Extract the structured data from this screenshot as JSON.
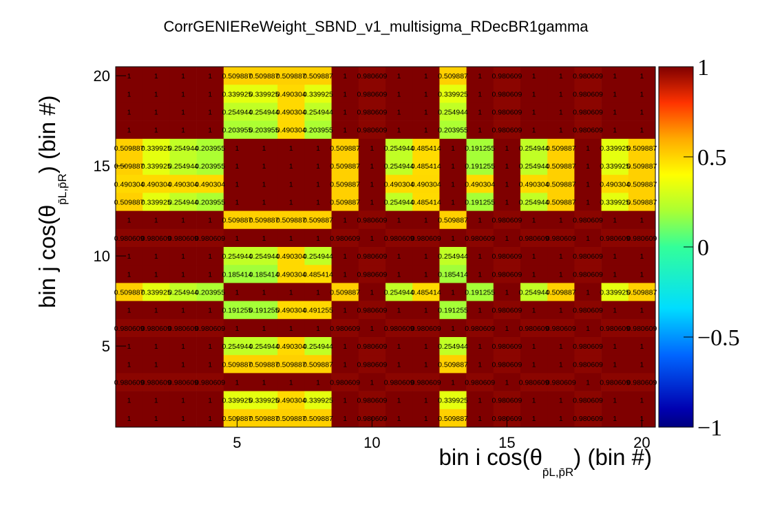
{
  "chart_data": {
    "type": "heatmap",
    "title": "CorrGENIEReWeight_SBND_v1_multisigma_RDecBR1gamma",
    "xlabel": "bin i cos(θ",
    "xlabel_sub": "p̄L,p̄R",
    "xlabel_tail": ") (bin #)",
    "ylabel": "bin j cos(θ",
    "ylabel_sub": "p̄L,p̄R",
    "ylabel_tail": ") (bin #)",
    "x_range": [
      0.5,
      20.5
    ],
    "y_range": [
      0.5,
      20.5
    ],
    "z_range": [
      -1,
      1
    ],
    "x_ticks": [
      5,
      10,
      15,
      20
    ],
    "y_ticks": [
      5,
      10,
      15,
      20
    ],
    "z_tick_labels": [
      "1",
      "0.5",
      "0",
      "−0.5",
      "−1"
    ],
    "z_tick_values": [
      1,
      0.5,
      0,
      -0.5,
      -1
    ],
    "rows": [
      [
        "1",
        "1",
        "1",
        "1",
        "0.509887",
        "0.509887",
        "0.509887",
        "0.509887",
        "1",
        "0.980609",
        "1",
        "1",
        "0.509887",
        "1",
        "0.980609",
        "1",
        "1",
        "0.980609",
        "1",
        "1"
      ],
      [
        "1",
        "1",
        "1",
        "1",
        "0.339925",
        "0.339925",
        "0.490304",
        "0.339925",
        "1",
        "0.980609",
        "1",
        "1",
        "0.339925",
        "1",
        "0.980609",
        "1",
        "1",
        "0.980609",
        "1",
        "1"
      ],
      [
        "1",
        "1",
        "1",
        "1",
        "0.254944",
        "0.254944",
        "0.490304",
        "0.254944",
        "1",
        "0.980609",
        "1",
        "1",
        "0.254944",
        "1",
        "0.980609",
        "1",
        "1",
        "0.980609",
        "1",
        "1"
      ],
      [
        "1",
        "1",
        "1",
        "1",
        "0.203955",
        "0.203955",
        "0.490304",
        "0.203955",
        "1",
        "0.980609",
        "1",
        "1",
        "0.203955",
        "1",
        "0.980609",
        "1",
        "1",
        "0.980609",
        "1",
        "1"
      ],
      [
        "0.509887",
        "0.339925",
        "0.254944",
        "0.203955",
        "1",
        "1",
        "1",
        "1",
        "0.509887",
        "1",
        "0.254944",
        "0.485414",
        "1",
        "0.191255",
        "1",
        "0.254944",
        "0.509887",
        "1",
        "0.339925",
        "0.509887"
      ],
      [
        "0.509887",
        "0.339925",
        "0.254944",
        "0.203955",
        "1",
        "1",
        "1",
        "1",
        "0.509887",
        "1",
        "0.254944",
        "0.485414",
        "1",
        "0.191255",
        "1",
        "0.254944",
        "0.509887",
        "1",
        "0.339925",
        "0.509887"
      ],
      [
        "0.490304",
        "0.490304",
        "0.490304",
        "0.490304",
        "1",
        "1",
        "1",
        "1",
        "0.509887",
        "1",
        "0.490304",
        "0.490304",
        "1",
        "0.490304",
        "1",
        "0.490304",
        "0.509887",
        "1",
        "0.490304",
        "0.509887"
      ],
      [
        "0.509887",
        "0.339925",
        "0.254944",
        "0.203955",
        "1",
        "1",
        "1",
        "1",
        "0.509887",
        "1",
        "0.254944",
        "0.485414",
        "1",
        "0.191255",
        "1",
        "0.254944",
        "0.509887",
        "1",
        "0.339925",
        "0.509887"
      ],
      [
        "1",
        "1",
        "1",
        "1",
        "0.509887",
        "0.509887",
        "0.509887",
        "0.509887",
        "1",
        "0.980609",
        "1",
        "1",
        "0.509887",
        "1",
        "0.980609",
        "1",
        "1",
        "0.980609",
        "1",
        "1"
      ],
      [
        "0.980609",
        "0.980609",
        "0.980609",
        "0.980609",
        "1",
        "1",
        "1",
        "1",
        "0.980609",
        "1",
        "0.980609",
        "0.980609",
        "1",
        "0.980609",
        "1",
        "0.980609",
        "0.980609",
        "1",
        "0.980609",
        "0.980609"
      ],
      [
        "1",
        "1",
        "1",
        "1",
        "0.254944",
        "0.254944",
        "0.490304",
        "0.254944",
        "1",
        "0.980609",
        "1",
        "1",
        "0.254944",
        "1",
        "0.980609",
        "1",
        "1",
        "0.980609",
        "1",
        "1"
      ],
      [
        "1",
        "1",
        "1",
        "1",
        "0.185414",
        "0.185414",
        "0.490304",
        "0.485414",
        "1",
        "0.980609",
        "1",
        "1",
        "0.185414",
        "1",
        "0.980609",
        "1",
        "1",
        "0.980609",
        "1",
        "1"
      ],
      [
        "0.509887",
        "0.339925",
        "0.254944",
        "0.203955",
        "1",
        "1",
        "1",
        "1",
        "0.509887",
        "1",
        "0.254944",
        "0.485414",
        "1",
        "0.191255",
        "1",
        "0.254944",
        "0.509887",
        "1",
        "0.339925",
        "0.509887"
      ],
      [
        "1",
        "1",
        "1",
        "1",
        "0.191255",
        "0.191255",
        "0.490304",
        "0.491255",
        "1",
        "0.980609",
        "1",
        "1",
        "0.191255",
        "1",
        "0.980609",
        "1",
        "1",
        "0.980609",
        "1",
        "1"
      ],
      [
        "0.980609",
        "0.980609",
        "0.980609",
        "0.980609",
        "1",
        "1",
        "1",
        "1",
        "0.980609",
        "1",
        "0.980609",
        "0.980609",
        "1",
        "0.980609",
        "1",
        "0.980609",
        "0.980609",
        "1",
        "0.980609",
        "0.980609"
      ],
      [
        "1",
        "1",
        "1",
        "1",
        "0.254944",
        "0.254944",
        "0.490304",
        "0.254944",
        "1",
        "0.980609",
        "1",
        "1",
        "0.254944",
        "1",
        "0.980609",
        "1",
        "1",
        "0.980609",
        "1",
        "1"
      ],
      [
        "1",
        "1",
        "1",
        "1",
        "0.509887",
        "0.509887",
        "0.509887",
        "0.509887",
        "1",
        "0.980609",
        "1",
        "1",
        "0.509887",
        "1",
        "0.980609",
        "1",
        "1",
        "0.980609",
        "1",
        "1"
      ],
      [
        "0.980609",
        "0.980609",
        "0.980609",
        "0.980609",
        "1",
        "1",
        "1",
        "1",
        "0.980609",
        "1",
        "0.980609",
        "0.980609",
        "1",
        "0.980609",
        "1",
        "0.980609",
        "0.980609",
        "1",
        "0.980609",
        "0.980609"
      ],
      [
        "1",
        "1",
        "1",
        "1",
        "0.339925",
        "0.339925",
        "0.490304",
        "0.339925",
        "1",
        "0.980609",
        "1",
        "1",
        "0.339925",
        "1",
        "0.980609",
        "1",
        "1",
        "0.980609",
        "1",
        "1"
      ],
      [
        "1",
        "1",
        "1",
        "1",
        "0.509887",
        "0.509887",
        "0.509887",
        "0.509887",
        "1",
        "0.980609",
        "1",
        "1",
        "0.509887",
        "1",
        "0.980609",
        "1",
        "1",
        "0.980609",
        "1",
        "1"
      ]
    ]
  }
}
